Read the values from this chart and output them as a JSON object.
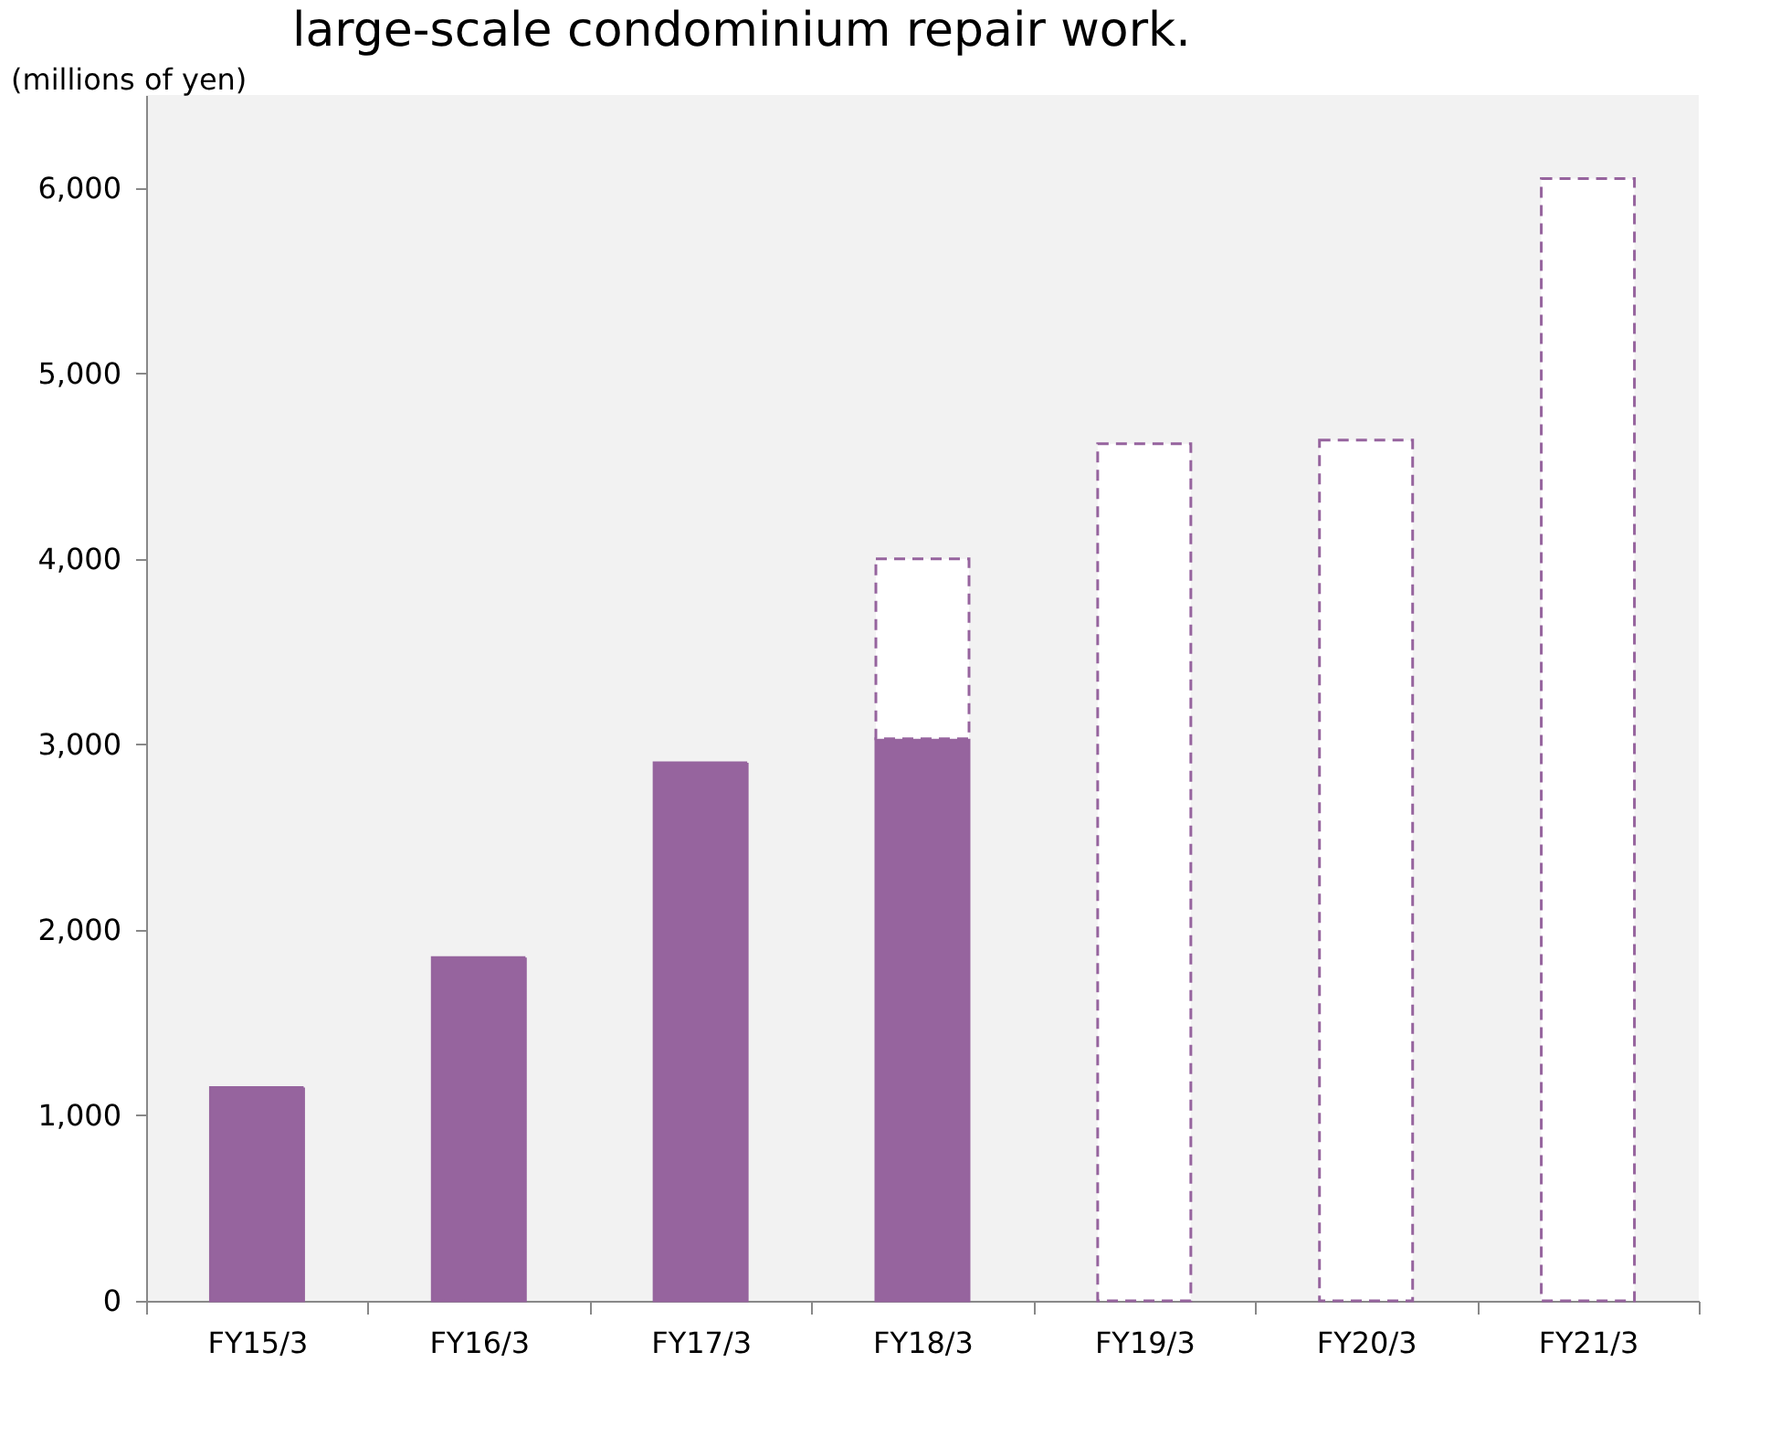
{
  "chart_data": {
    "type": "bar",
    "title": "large-scale condominium repair work.",
    "ylabel": "(millions of yen)",
    "categories": [
      "FY15/3",
      "FY16/3",
      "FY17/3",
      "FY18/3",
      "FY19/3",
      "FY20/3",
      "FY21/3"
    ],
    "stacked": true,
    "series": [
      {
        "color": "#96649e",
        "values": [
          1150,
          1850,
          2900,
          3030,
          null,
          null,
          null
        ]
      },
      {
        "color": "#ffffff",
        "line_style": "dashed",
        "values": [
          null,
          null,
          null,
          970,
          4620,
          4640,
          6050
        ]
      }
    ],
    "ylim": [
      0,
      6500
    ],
    "yticks": [
      0,
      {
        "value": 1000,
        "label": "1,000"
      },
      {
        "value": 2000,
        "label": "2,000"
      },
      {
        "value": 3000,
        "label": "3,000"
      },
      {
        "value": 4000,
        "label": "4,000"
      },
      {
        "value": 5000,
        "label": "5,000"
      },
      {
        "value": 6000,
        "label": "6,000"
      }
    ],
    "grid": false,
    "legend": false
  }
}
